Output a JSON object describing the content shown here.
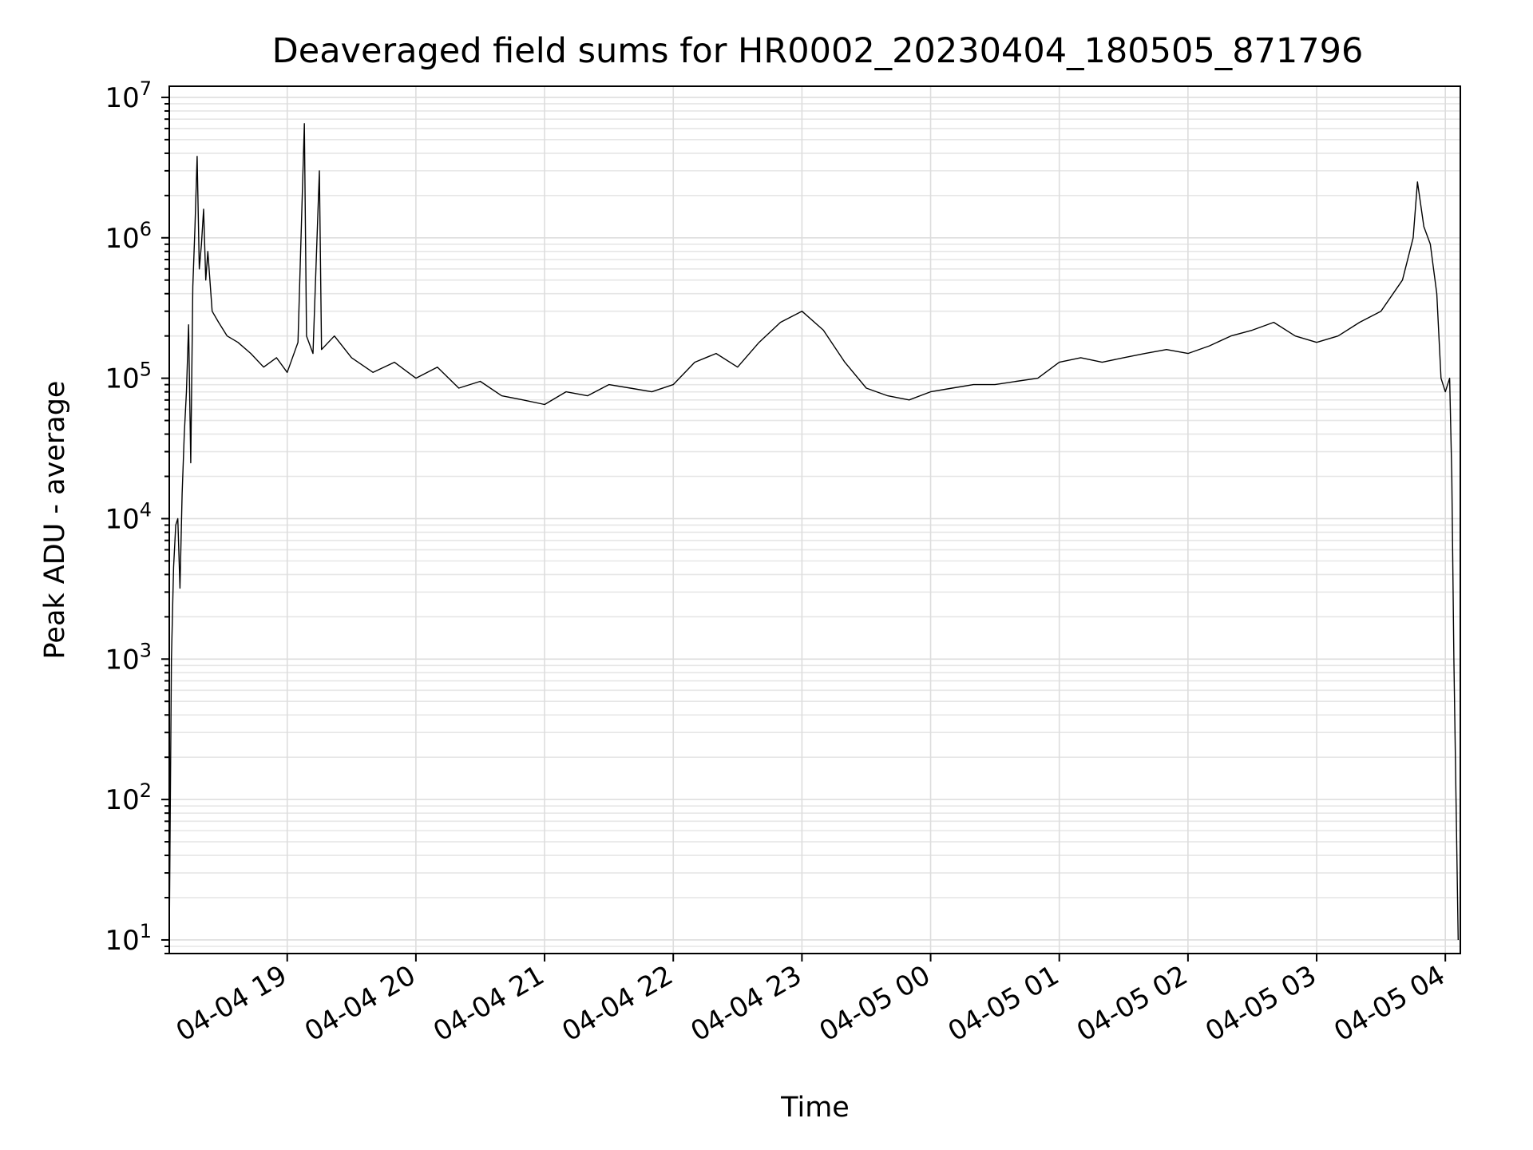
{
  "chart_data": {
    "type": "line",
    "title": "Deaveraged field sums for HR0002_20230404_180505_871796",
    "xlabel": "Time",
    "ylabel": "Peak ADU - average",
    "yscale": "log",
    "ylim": [
      8,
      12000000
    ],
    "xlim": [
      "2023-04-04 18:05",
      "2023-04-05 04:07"
    ],
    "grid": true,
    "x_ticks": [
      {
        "time": "2023-04-04 19:00",
        "label": "04-04 19"
      },
      {
        "time": "2023-04-04 20:00",
        "label": "04-04 20"
      },
      {
        "time": "2023-04-04 21:00",
        "label": "04-04 21"
      },
      {
        "time": "2023-04-04 22:00",
        "label": "04-04 22"
      },
      {
        "time": "2023-04-04 23:00",
        "label": "04-04 23"
      },
      {
        "time": "2023-04-05 00:00",
        "label": "04-05 00"
      },
      {
        "time": "2023-04-05 01:00",
        "label": "04-05 01"
      },
      {
        "time": "2023-04-05 02:00",
        "label": "04-05 02"
      },
      {
        "time": "2023-04-05 03:00",
        "label": "04-05 03"
      },
      {
        "time": "2023-04-05 04:00",
        "label": "04-05 04"
      }
    ],
    "y_ticks": [
      {
        "value": 10,
        "base": "10",
        "exp": "1"
      },
      {
        "value": 100,
        "base": "10",
        "exp": "2"
      },
      {
        "value": 1000,
        "base": "10",
        "exp": "3"
      },
      {
        "value": 10000,
        "base": "10",
        "exp": "4"
      },
      {
        "value": 100000,
        "base": "10",
        "exp": "5"
      },
      {
        "value": 1000000,
        "base": "10",
        "exp": "6"
      },
      {
        "value": 10000000,
        "base": "10",
        "exp": "7"
      }
    ],
    "series": [
      {
        "color": "#000000",
        "points": [
          [
            "2023-04-04 18:05",
            10
          ],
          [
            "2023-04-04 18:06",
            1000
          ],
          [
            "2023-04-04 18:07",
            4500
          ],
          [
            "2023-04-04 18:08",
            9000
          ],
          [
            "2023-04-04 18:09",
            10000
          ],
          [
            "2023-04-04 18:10",
            3200
          ],
          [
            "2023-04-04 18:11",
            15000
          ],
          [
            "2023-04-04 18:12",
            40000
          ],
          [
            "2023-04-04 18:13",
            80000
          ],
          [
            "2023-04-04 18:14",
            240000
          ],
          [
            "2023-04-04 18:15",
            25000
          ],
          [
            "2023-04-04 18:16",
            450000
          ],
          [
            "2023-04-04 18:17",
            1200000
          ],
          [
            "2023-04-04 18:18",
            3800000
          ],
          [
            "2023-04-04 18:19",
            600000
          ],
          [
            "2023-04-04 18:20",
            900000
          ],
          [
            "2023-04-04 18:21",
            1600000
          ],
          [
            "2023-04-04 18:22",
            500000
          ],
          [
            "2023-04-04 18:23",
            800000
          ],
          [
            "2023-04-04 18:25",
            300000
          ],
          [
            "2023-04-04 18:28",
            250000
          ],
          [
            "2023-04-04 18:32",
            200000
          ],
          [
            "2023-04-04 18:37",
            180000
          ],
          [
            "2023-04-04 18:43",
            150000
          ],
          [
            "2023-04-04 18:49",
            120000
          ],
          [
            "2023-04-04 18:55",
            140000
          ],
          [
            "2023-04-04 19:00",
            110000
          ],
          [
            "2023-04-04 19:05",
            180000
          ],
          [
            "2023-04-04 19:08",
            6500000
          ],
          [
            "2023-04-04 19:09",
            200000
          ],
          [
            "2023-04-04 19:12",
            150000
          ],
          [
            "2023-04-04 19:15",
            3000000
          ],
          [
            "2023-04-04 19:16",
            160000
          ],
          [
            "2023-04-04 19:22",
            200000
          ],
          [
            "2023-04-04 19:30",
            140000
          ],
          [
            "2023-04-04 19:40",
            110000
          ],
          [
            "2023-04-04 19:50",
            130000
          ],
          [
            "2023-04-04 20:00",
            100000
          ],
          [
            "2023-04-04 20:10",
            120000
          ],
          [
            "2023-04-04 20:20",
            85000
          ],
          [
            "2023-04-04 20:30",
            95000
          ],
          [
            "2023-04-04 20:40",
            75000
          ],
          [
            "2023-04-04 20:50",
            70000
          ],
          [
            "2023-04-04 21:00",
            65000
          ],
          [
            "2023-04-04 21:10",
            80000
          ],
          [
            "2023-04-04 21:20",
            75000
          ],
          [
            "2023-04-04 21:30",
            90000
          ],
          [
            "2023-04-04 21:40",
            85000
          ],
          [
            "2023-04-04 21:50",
            80000
          ],
          [
            "2023-04-04 22:00",
            90000
          ],
          [
            "2023-04-04 22:10",
            130000
          ],
          [
            "2023-04-04 22:20",
            150000
          ],
          [
            "2023-04-04 22:30",
            120000
          ],
          [
            "2023-04-04 22:40",
            180000
          ],
          [
            "2023-04-04 22:50",
            250000
          ],
          [
            "2023-04-04 23:00",
            300000
          ],
          [
            "2023-04-04 23:10",
            220000
          ],
          [
            "2023-04-04 23:20",
            130000
          ],
          [
            "2023-04-04 23:30",
            85000
          ],
          [
            "2023-04-04 23:40",
            75000
          ],
          [
            "2023-04-04 23:50",
            70000
          ],
          [
            "2023-04-05 00:00",
            80000
          ],
          [
            "2023-04-05 00:10",
            85000
          ],
          [
            "2023-04-05 00:20",
            90000
          ],
          [
            "2023-04-05 00:30",
            90000
          ],
          [
            "2023-04-05 00:40",
            95000
          ],
          [
            "2023-04-05 00:50",
            100000
          ],
          [
            "2023-04-05 01:00",
            130000
          ],
          [
            "2023-04-05 01:10",
            140000
          ],
          [
            "2023-04-05 01:20",
            130000
          ],
          [
            "2023-04-05 01:30",
            140000
          ],
          [
            "2023-04-05 01:40",
            150000
          ],
          [
            "2023-04-05 01:50",
            160000
          ],
          [
            "2023-04-05 02:00",
            150000
          ],
          [
            "2023-04-05 02:10",
            170000
          ],
          [
            "2023-04-05 02:20",
            200000
          ],
          [
            "2023-04-05 02:30",
            220000
          ],
          [
            "2023-04-05 02:40",
            250000
          ],
          [
            "2023-04-05 02:50",
            200000
          ],
          [
            "2023-04-05 03:00",
            180000
          ],
          [
            "2023-04-05 03:10",
            200000
          ],
          [
            "2023-04-05 03:20",
            250000
          ],
          [
            "2023-04-05 03:30",
            300000
          ],
          [
            "2023-04-05 03:40",
            500000
          ],
          [
            "2023-04-05 03:45",
            1000000
          ],
          [
            "2023-04-05 03:47",
            2500000
          ],
          [
            "2023-04-05 03:50",
            1200000
          ],
          [
            "2023-04-05 03:53",
            900000
          ],
          [
            "2023-04-05 03:56",
            400000
          ],
          [
            "2023-04-05 03:58",
            100000
          ],
          [
            "2023-04-05 04:00",
            80000
          ],
          [
            "2023-04-05 04:02",
            100000
          ],
          [
            "2023-04-05 04:03",
            20000
          ],
          [
            "2023-04-05 04:04",
            1000
          ],
          [
            "2023-04-05 04:05",
            100
          ],
          [
            "2023-04-05 04:06",
            10
          ]
        ]
      }
    ]
  }
}
